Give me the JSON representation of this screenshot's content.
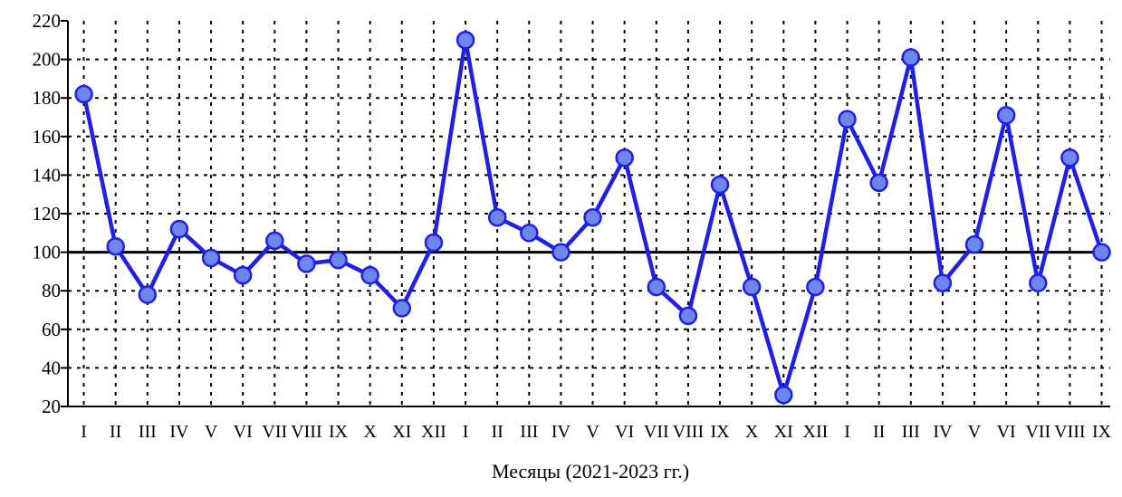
{
  "chart_data": {
    "type": "line",
    "title": "",
    "xlabel": "Месяцы (2021-2023 гг.)",
    "ylabel": "",
    "ylim": [
      20,
      220
    ],
    "yticks": [
      20,
      40,
      60,
      80,
      100,
      120,
      140,
      160,
      180,
      200,
      220
    ],
    "grid": true,
    "reference_line": 100,
    "categories": [
      "I",
      "II",
      "III",
      "IV",
      "V",
      "VI",
      "VII",
      "VIII",
      "IX",
      "X",
      "XI",
      "XII",
      "I",
      "II",
      "III",
      "IV",
      "V",
      "VI",
      "VII",
      "VIII",
      "IX",
      "X",
      "XI",
      "XII",
      "I",
      "II",
      "III",
      "IV",
      "V",
      "VI",
      "VII",
      "VIII",
      "IX"
    ],
    "series": [
      {
        "values": [
          182,
          103,
          78,
          112,
          97,
          88,
          106,
          94,
          96,
          88,
          71,
          105,
          210,
          118,
          110,
          100,
          118,
          149,
          82,
          67,
          135,
          82,
          26,
          82,
          169,
          136,
          201,
          84,
          104,
          171,
          84,
          149,
          100
        ],
        "color": "#1f1fe6",
        "marker_fill": "#6e86f0"
      }
    ]
  }
}
